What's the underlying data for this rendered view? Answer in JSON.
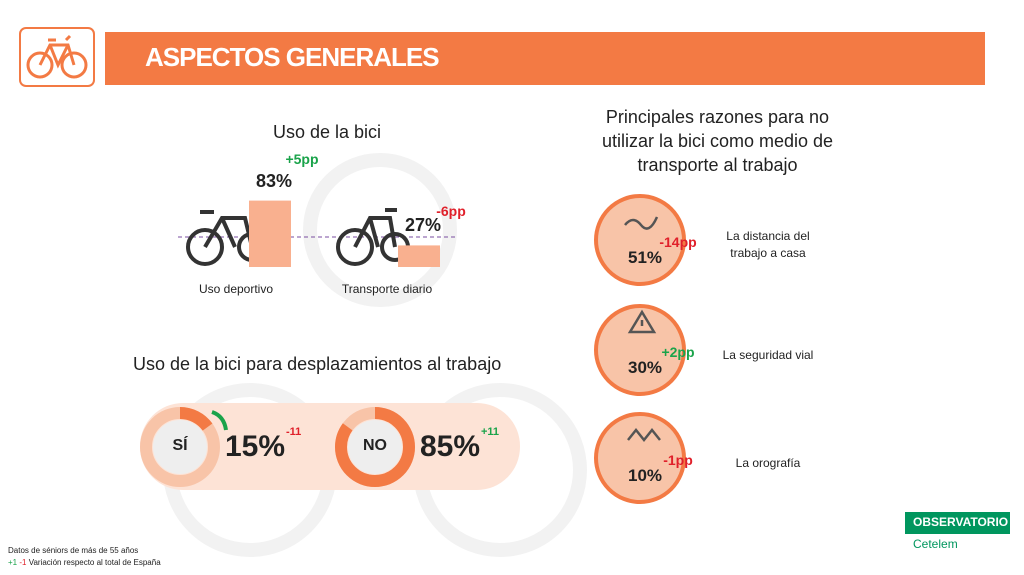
{
  "header": {
    "title": "ASPECTOS GENERALES"
  },
  "bike_use": {
    "title": "Uso de la bici",
    "categories": [
      "Uso deportivo",
      "Transporte diario"
    ],
    "values": [
      83,
      27
    ],
    "value_labels": [
      "83%",
      "27%"
    ],
    "changes": [
      "+5pp",
      "-6pp"
    ],
    "color": "#f9b08f"
  },
  "commute": {
    "title": "Uso de la bici para desplazamientos al trabajo",
    "items": [
      {
        "label": "SÍ",
        "value": 15,
        "value_label": "15%",
        "change": "-11"
      },
      {
        "label": "NO",
        "value": 85,
        "value_label": "85%",
        "change": "+11"
      }
    ]
  },
  "reasons": {
    "title": "Principales razones para no utilizar la bici como medio de transporte al trabajo",
    "items": [
      {
        "label": "La distancia del trabajo a casa",
        "value": "51%",
        "change": "-14pp"
      },
      {
        "label": "La seguridad vial",
        "value": "30%",
        "change": "+2pp"
      },
      {
        "label": "La orografía",
        "value": "10%",
        "change": "-1pp"
      }
    ]
  },
  "footer": {
    "note": "Datos de séniors de más de 55 años",
    "legend_up": "+1",
    "legend_down": "-1",
    "legend_text": "Variación respecto al total de España"
  },
  "logo": {
    "line1": "OBSERVATORIO",
    "line2": "Cetelem"
  }
}
